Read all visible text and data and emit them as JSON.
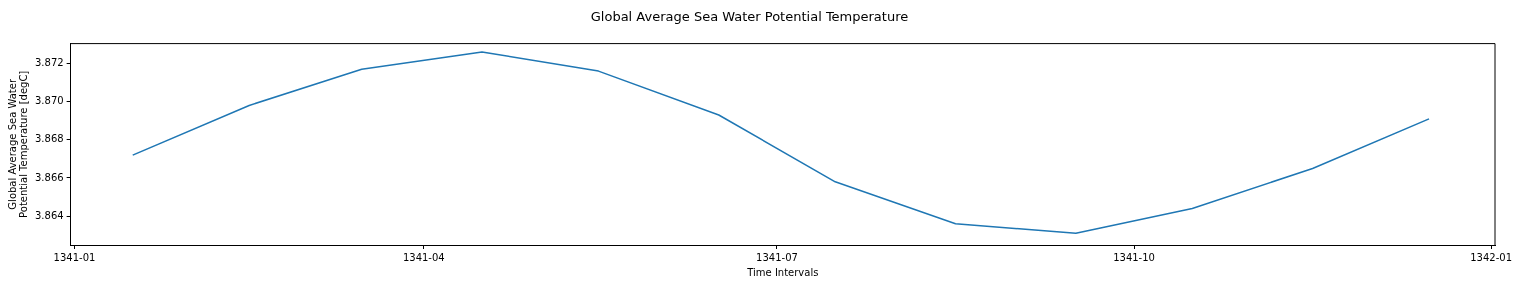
{
  "chart_data": {
    "type": "line",
    "title": "Global Average Sea Water Potential Temperature",
    "xlabel": "Time Intervals",
    "ylabel": "Global Average Sea Water\nPotential Temperature [degC]",
    "x": [
      "1341-01-16",
      "1341-02-15",
      "1341-03-16",
      "1341-04-16",
      "1341-05-16",
      "1341-06-16",
      "1341-07-16",
      "1341-08-16",
      "1341-09-16",
      "1341-10-16",
      "1341-11-16",
      "1341-12-16"
    ],
    "series": [
      {
        "color": "#1f77b4",
        "values": [
          3.8672,
          3.8698,
          3.8717,
          3.8726,
          3.8716,
          3.8693,
          3.8658,
          3.8636,
          3.8631,
          3.8644,
          3.8665,
          3.8691
        ]
      }
    ],
    "xlim": [
      "1340-12-31",
      "1342-01-02"
    ],
    "xticks": [
      "1341-01",
      "1341-04",
      "1341-07",
      "1341-10",
      "1342-01"
    ],
    "ylim": [
      3.86249,
      3.87304
    ],
    "yticks": [
      3.864,
      3.866,
      3.868,
      {
        "value": 3.87,
        "label": "3.870"
      },
      3.872
    ],
    "grid": false,
    "legend": false,
    "marker": "none",
    "line_style": "solid"
  }
}
